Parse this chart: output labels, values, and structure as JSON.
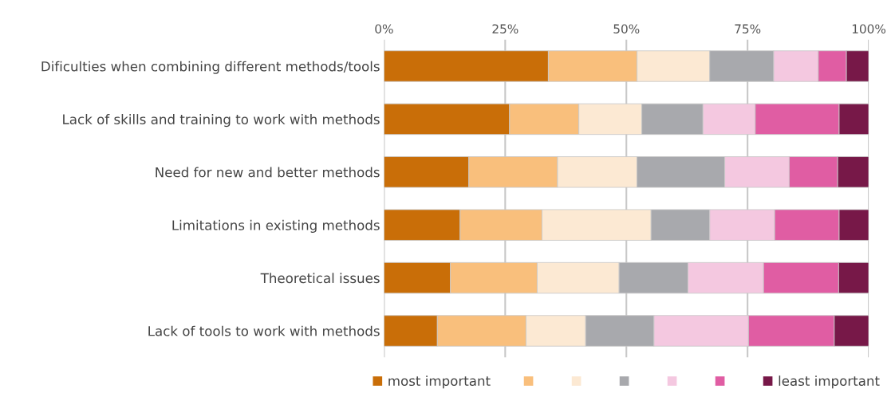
{
  "chart_data": {
    "type": "bar",
    "orientation": "horizontal",
    "stacked": true,
    "categories": [
      "Dificulties when combining different methods/tools",
      "Lack of skills and training to work with methods",
      "Need for new and better methods",
      "Limitations in existing methods",
      "Theoretical issues",
      "Lack of tools to work with methods"
    ],
    "series": [
      {
        "name": "most important",
        "color": "#c96e08",
        "values": [
          33.9,
          25.9,
          17.5,
          15.7,
          13.7,
          11.0
        ]
      },
      {
        "color": "#f9bf7c",
        "values": [
          18.3,
          14.3,
          18.3,
          16.9,
          17.9,
          18.3
        ]
      },
      {
        "color": "#fce9d3",
        "values": [
          15.0,
          13.0,
          16.4,
          22.5,
          16.9,
          12.3
        ]
      },
      {
        "color": "#a8a9ad",
        "values": [
          13.2,
          12.6,
          18.1,
          12.1,
          14.2,
          14.1
        ]
      },
      {
        "color": "#f4c8e0",
        "values": [
          9.2,
          10.8,
          13.3,
          13.4,
          15.6,
          19.5
        ]
      },
      {
        "color": "#e05da3",
        "values": [
          5.8,
          17.3,
          10.0,
          13.3,
          15.5,
          17.7
        ]
      },
      {
        "name": "least important",
        "color": "#771848",
        "values": [
          4.6,
          6.1,
          6.4,
          6.1,
          6.2,
          7.1
        ]
      }
    ],
    "xlim": [
      0,
      100
    ],
    "xticks": [
      {
        "value": 0,
        "label": "0%"
      },
      {
        "value": 25,
        "label": "25%"
      },
      {
        "value": 50,
        "label": "50%"
      },
      {
        "value": 75,
        "label": "75%"
      },
      {
        "value": 100,
        "label": "100%"
      }
    ],
    "grid": "x",
    "legend": "bottom"
  }
}
